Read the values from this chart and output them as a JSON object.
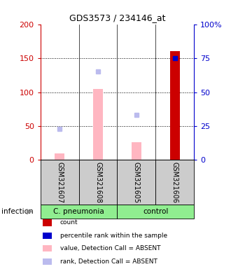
{
  "title": "GDS3573 / 234146_at",
  "samples": [
    "GSM321607",
    "GSM321608",
    "GSM321605",
    "GSM321606"
  ],
  "bar_values": [
    10,
    105,
    26,
    160
  ],
  "rank_values_pct": [
    23,
    65,
    33,
    75
  ],
  "bar_colors": [
    "#FFB6C1",
    "#FFB6C1",
    "#FFB6C1",
    "#CC0000"
  ],
  "rank_colors": [
    "#BBBBEE",
    "#BBBBEE",
    "#BBBBEE",
    "#0000CC"
  ],
  "ylim_left": [
    0,
    200
  ],
  "ylim_right": [
    0,
    100
  ],
  "yticks_left": [
    0,
    50,
    100,
    150,
    200
  ],
  "yticks_right": [
    0,
    25,
    50,
    75,
    100
  ],
  "ytick_labels_right": [
    "0",
    "25",
    "50",
    "75",
    "100%"
  ],
  "left_axis_color": "#CC0000",
  "right_axis_color": "#0000CC",
  "sample_box_color": "#CCCCCC",
  "group1_label": "C. pneumonia",
  "group2_label": "control",
  "group_color": "#90EE90",
  "infection_label": "infection",
  "legend": [
    {
      "label": "count",
      "color": "#CC0000"
    },
    {
      "label": "percentile rank within the sample",
      "color": "#0000CC"
    },
    {
      "label": "value, Detection Call = ABSENT",
      "color": "#FFB6C1"
    },
    {
      "label": "rank, Detection Call = ABSENT",
      "color": "#BBBBEE"
    }
  ]
}
